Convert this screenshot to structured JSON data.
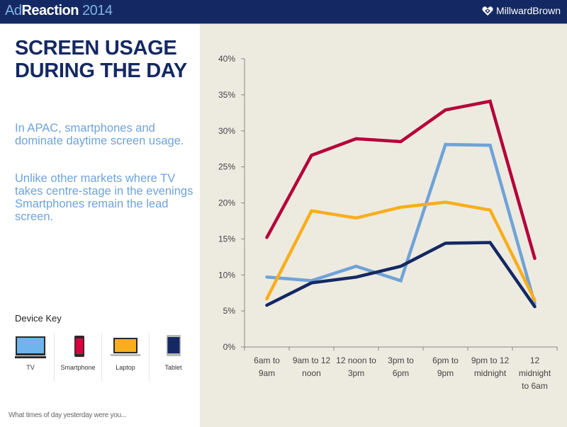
{
  "header": {
    "brand_prefix": "Ad",
    "brand_main": "Reaction",
    "brand_year": "2014",
    "logo_text": "MillwardBrown",
    "logo_icon": "heart-diamond-icon"
  },
  "left": {
    "title_line1": "SCREEN USAGE",
    "title_line2": "DURING THE DAY",
    "paragraph1": "In APAC, smartphones and dominate daytime screen usage.",
    "paragraph2": "Unlike other markets where TV takes centre-stage in the evenings Smartphones remain the lead screen.",
    "device_key_title": "Device Key",
    "devices": [
      {
        "label": "TV",
        "icon": "tv-icon",
        "color": "#6fa3d8"
      },
      {
        "label": "Smartphone",
        "icon": "smartphone-icon",
        "color": "#b5003a"
      },
      {
        "label": "Laptop",
        "icon": "laptop-icon",
        "color": "#f9ae1b"
      },
      {
        "label": "Tablet",
        "icon": "tablet-icon",
        "color": "#142963"
      }
    ],
    "footer": "What times of day yesterday were you..."
  },
  "colors": {
    "header_bg": "#142963",
    "chart_bg": "#edebe0",
    "title": "#142963",
    "body_text": "#6fa3d8"
  },
  "chart_data": {
    "type": "line",
    "title": "",
    "xlabel": "",
    "ylabel": "",
    "ylim": [
      0,
      40
    ],
    "yticks": [
      "0%",
      "5%",
      "10%",
      "15%",
      "20%",
      "25%",
      "30%",
      "35%",
      "40%"
    ],
    "ytick_values": [
      0,
      5,
      10,
      15,
      20,
      25,
      30,
      35,
      40
    ],
    "grid": false,
    "legend": "none",
    "categories": [
      [
        "6am to",
        "9am"
      ],
      [
        "9am to 12",
        "noon"
      ],
      [
        "12 noon to",
        "3pm"
      ],
      [
        "3pm to",
        "6pm"
      ],
      [
        "6pm to",
        "9pm"
      ],
      [
        "9pm to 12",
        "midnight"
      ],
      [
        "12",
        "midnight",
        "to 6am"
      ]
    ],
    "series": [
      {
        "name": "Smartphone",
        "color": "#b5003a",
        "values": [
          15.2,
          26.6,
          28.9,
          28.5,
          32.9,
          34.1,
          12.3
        ]
      },
      {
        "name": "TV",
        "color": "#6fa3d8",
        "values": [
          9.7,
          9.2,
          11.2,
          9.2,
          28.1,
          28.0,
          6.0
        ]
      },
      {
        "name": "Laptop",
        "color": "#f9ae1b",
        "values": [
          6.7,
          18.9,
          17.9,
          19.4,
          20.1,
          19.0,
          6.5
        ]
      },
      {
        "name": "Tablet",
        "color": "#142963",
        "values": [
          5.8,
          8.9,
          9.7,
          11.2,
          14.4,
          14.5,
          5.6
        ]
      }
    ]
  }
}
